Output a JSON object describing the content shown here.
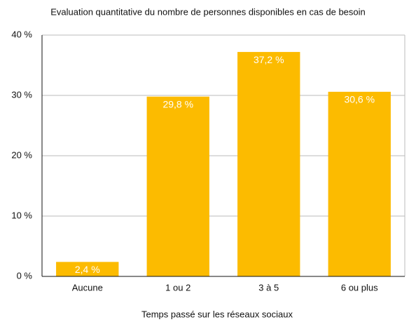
{
  "chart_data": {
    "type": "bar",
    "title": "Evaluation quantitative du nombre de personnes disponibles en cas de besoin",
    "x_label": "Temps passé sur les réseaux sociaux",
    "categories": [
      "Aucune",
      "1 ou 2",
      "3 à 5",
      "6 ou plus"
    ],
    "values": [
      2.4,
      29.8,
      37.2,
      30.6
    ],
    "value_labels": [
      "2,4 %",
      "29,8 %",
      "37,2 %",
      "30,6 %"
    ],
    "color": "#fcbb00",
    "ylim": [
      0,
      40
    ],
    "yticks": [
      {
        "value": 0,
        "label": "0 %"
      },
      {
        "value": 10,
        "label": "10 %"
      },
      {
        "value": 20,
        "label": "20 %"
      },
      {
        "value": 30,
        "label": "30 %"
      },
      {
        "value": 40,
        "label": "40 %"
      }
    ],
    "grid": true
  }
}
